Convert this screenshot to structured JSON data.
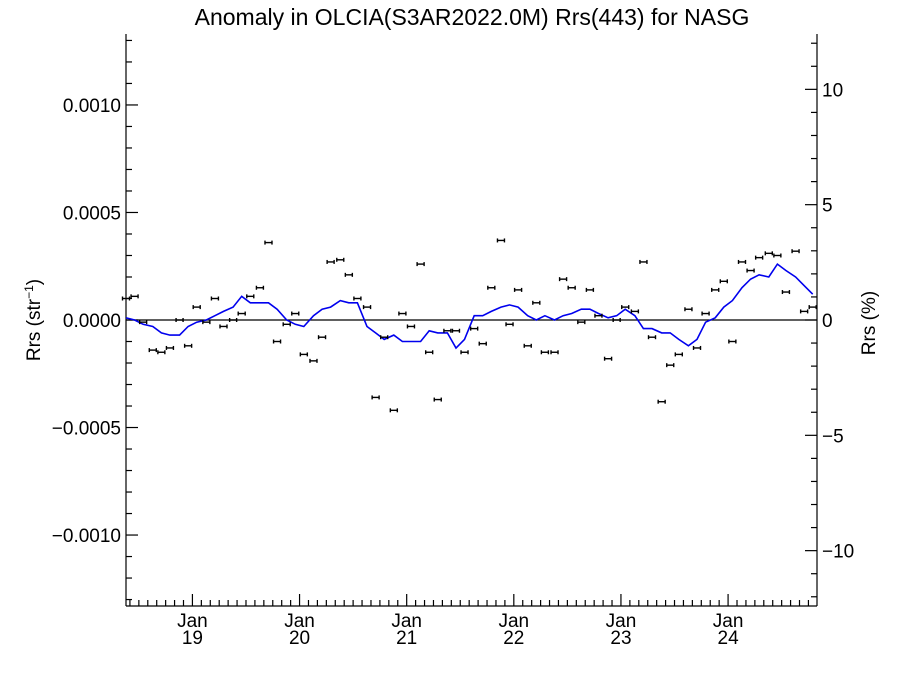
{
  "chart_data": {
    "type": "scatter",
    "title": "Anomaly in OLCIA(S3AR2022.0M) Rrs(443) for NASG",
    "ylabel_left": "Rrs (str",
    "ylabel_left_sup": "−1",
    "ylabel_left_close": ")",
    "ylabel_right": "Rrs (%)",
    "xlim": [
      2018.38,
      2024.83
    ],
    "ylim": [
      -0.00133,
      0.00133
    ],
    "ylim_right": [
      -12.4,
      12.4
    ],
    "left_ticks": [
      {
        "value": 0.001,
        "label": "0.0010"
      },
      {
        "value": 0.0005,
        "label": "0.0005"
      },
      {
        "value": 0.0,
        "label": "0.0000"
      },
      {
        "value": -0.0005,
        "label": "−0.0005"
      },
      {
        "value": -0.001,
        "label": "−0.0010"
      }
    ],
    "right_ticks": [
      {
        "value": 10,
        "label": "10"
      },
      {
        "value": 5,
        "label": "5"
      },
      {
        "value": 0,
        "label": "0"
      },
      {
        "value": -5,
        "label": "−5"
      },
      {
        "value": -10,
        "label": "−10"
      }
    ],
    "x_ticks": [
      {
        "value": 2019.0,
        "month": "Jan",
        "year": "19"
      },
      {
        "value": 2020.0,
        "month": "Jan",
        "year": "20"
      },
      {
        "value": 2021.0,
        "month": "Jan",
        "year": "21"
      },
      {
        "value": 2022.0,
        "month": "Jan",
        "year": "22"
      },
      {
        "value": 2023.0,
        "month": "Jan",
        "year": "23"
      },
      {
        "value": 2024.0,
        "month": "Jan",
        "year": "24"
      }
    ],
    "zero_line": true,
    "series": [
      {
        "kind": "points",
        "color": "#000000",
        "x": [
          2018.38,
          2018.46,
          2018.54,
          2018.63,
          2018.71,
          2018.79,
          2018.88,
          2018.96,
          2019.04,
          2019.13,
          2019.21,
          2019.29,
          2019.38,
          2019.46,
          2019.54,
          2019.63,
          2019.71,
          2019.79,
          2019.88,
          2019.96,
          2020.04,
          2020.13,
          2020.21,
          2020.29,
          2020.38,
          2020.46,
          2020.54,
          2020.63,
          2020.71,
          2020.79,
          2020.88,
          2020.96,
          2021.04,
          2021.13,
          2021.21,
          2021.29,
          2021.38,
          2021.46,
          2021.54,
          2021.63,
          2021.71,
          2021.79,
          2021.88,
          2021.96,
          2022.04,
          2022.13,
          2022.21,
          2022.29,
          2022.38,
          2022.46,
          2022.54,
          2022.63,
          2022.71,
          2022.79,
          2022.88,
          2022.96,
          2023.04,
          2023.13,
          2023.21,
          2023.29,
          2023.38,
          2023.46,
          2023.54,
          2023.63,
          2023.71,
          2023.79,
          2023.88,
          2023.96,
          2024.04,
          2024.13,
          2024.21,
          2024.29,
          2024.38,
          2024.46,
          2024.54,
          2024.63,
          2024.71,
          2024.79
        ],
        "y": [
          0.0001,
          0.00011,
          -1e-05,
          -0.00014,
          -0.00015,
          -0.00013,
          0.0,
          -0.00012,
          6e-05,
          -1e-05,
          0.0001,
          -3e-05,
          0.0,
          3e-05,
          0.00011,
          0.00015,
          0.00036,
          -0.0001,
          -2e-05,
          3e-05,
          -0.00016,
          -0.00019,
          -8e-05,
          0.00027,
          0.00028,
          0.00021,
          0.0001,
          6e-05,
          -0.00036,
          -8e-05,
          -0.00042,
          3e-05,
          -3e-05,
          0.00026,
          -0.00015,
          -0.00037,
          -5e-05,
          -5e-05,
          -0.00015,
          -4e-05,
          -0.00011,
          0.00015,
          0.00037,
          -2e-05,
          0.00014,
          -0.00012,
          8e-05,
          -0.00015,
          -0.00015,
          0.00019,
          0.00015,
          -1e-05,
          0.00014,
          2e-05,
          -0.00018,
          0.0,
          6e-05,
          4e-05,
          0.00027,
          -8e-05,
          -0.00038,
          -0.00021,
          -0.00016,
          5e-05,
          -0.00013,
          3e-05,
          0.00014,
          0.00018,
          -0.0001,
          0.00027,
          0.00023,
          0.00029,
          0.00031,
          0.0003,
          0.00013,
          0.00032,
          4e-05,
          6e-05
        ]
      },
      {
        "kind": "line",
        "color": "#0000ee",
        "x": [
          2018.38,
          2018.46,
          2018.54,
          2018.63,
          2018.71,
          2018.79,
          2018.88,
          2018.96,
          2019.04,
          2019.13,
          2019.21,
          2019.29,
          2019.38,
          2019.46,
          2019.54,
          2019.63,
          2019.71,
          2019.79,
          2019.88,
          2019.96,
          2020.04,
          2020.13,
          2020.21,
          2020.29,
          2020.38,
          2020.46,
          2020.54,
          2020.63,
          2020.71,
          2020.79,
          2020.88,
          2020.96,
          2021.04,
          2021.13,
          2021.21,
          2021.29,
          2021.38,
          2021.46,
          2021.54,
          2021.63,
          2021.71,
          2021.79,
          2021.88,
          2021.96,
          2022.04,
          2022.13,
          2022.21,
          2022.29,
          2022.38,
          2022.46,
          2022.54,
          2022.63,
          2022.71,
          2022.79,
          2022.88,
          2022.96,
          2023.04,
          2023.13,
          2023.21,
          2023.29,
          2023.38,
          2023.46,
          2023.54,
          2023.63,
          2023.71,
          2023.79,
          2023.88,
          2023.96,
          2024.04,
          2024.13,
          2024.21,
          2024.29,
          2024.38,
          2024.46,
          2024.54,
          2024.63,
          2024.71,
          2024.79
        ],
        "y": [
          1e-05,
          0.0,
          -2e-05,
          -3e-05,
          -6e-05,
          -7e-05,
          -7e-05,
          -3e-05,
          -1e-05,
          0.0,
          2e-05,
          4e-05,
          6e-05,
          0.00011,
          8e-05,
          8e-05,
          8e-05,
          5e-05,
          0.0,
          -2e-05,
          -3e-05,
          2e-05,
          5e-05,
          6e-05,
          9e-05,
          8e-05,
          8e-05,
          -3e-05,
          -6e-05,
          -9e-05,
          -7e-05,
          -0.0001,
          -0.0001,
          -0.0001,
          -5e-05,
          -6e-05,
          -6e-05,
          -0.00013,
          -9e-05,
          2e-05,
          2e-05,
          4e-05,
          6e-05,
          7e-05,
          6e-05,
          2e-05,
          0.0,
          2e-05,
          0.0,
          2e-05,
          3e-05,
          5e-05,
          5e-05,
          3e-05,
          1e-05,
          2e-05,
          5e-05,
          2e-05,
          -4e-05,
          -4e-05,
          -6e-05,
          -6e-05,
          -9e-05,
          -0.00012,
          -9e-05,
          -1e-05,
          1e-05,
          6e-05,
          9e-05,
          0.00015,
          0.00019,
          0.00021,
          0.0002,
          0.00026,
          0.00023,
          0.0002,
          0.00016,
          0.00012
        ]
      }
    ],
    "grid": false
  }
}
